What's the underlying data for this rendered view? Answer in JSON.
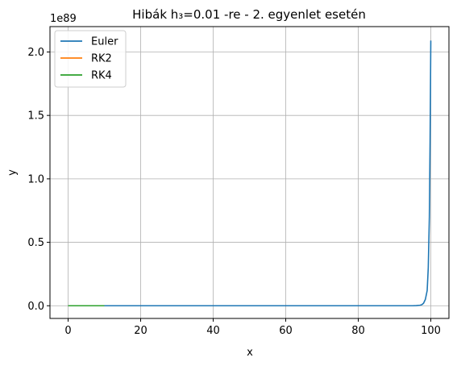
{
  "chart_data": {
    "type": "line",
    "title": "Hibák h₃=0.01 -re - 2. egyenlet esetén",
    "xlabel": "x",
    "ylabel": "y",
    "y_offset_text": "1e89",
    "xlim": [
      -5,
      105
    ],
    "ylim": [
      -0.1,
      2.2
    ],
    "y_scale_factor": 1e+89,
    "x_ticks": [
      0,
      20,
      40,
      60,
      80,
      100
    ],
    "x_tick_labels": [
      "0",
      "20",
      "40",
      "60",
      "80",
      "100"
    ],
    "y_ticks": [
      0.0,
      0.5,
      1.0,
      1.5,
      2.0
    ],
    "y_tick_labels": [
      "0.0",
      "0.5",
      "1.0",
      "1.5",
      "2.0"
    ],
    "grid": true,
    "legend_position": "top-left",
    "series": [
      {
        "name": "Euler",
        "color": "#1f77b4",
        "x": [
          0,
          10,
          20,
          30,
          40,
          50,
          60,
          70,
          80,
          90,
          95,
          96,
          97,
          97.5,
          98,
          98.5,
          99,
          99.3,
          99.6,
          99.8,
          100
        ],
        "y": [
          0,
          0,
          0,
          0,
          0,
          0,
          0,
          0,
          0,
          0,
          0.0,
          0.001,
          0.004,
          0.008,
          0.02,
          0.05,
          0.12,
          0.3,
          0.7,
          1.3,
          2.09
        ]
      },
      {
        "name": "RK2",
        "color": "#ff7f0e",
        "x": [
          0,
          2,
          4,
          6,
          8,
          10
        ],
        "y": [
          0,
          0,
          0,
          0,
          0,
          0
        ]
      },
      {
        "name": "RK4",
        "color": "#2ca02c",
        "x": [
          0,
          2,
          4,
          6,
          8,
          10
        ],
        "y": [
          0,
          0,
          0,
          0,
          0,
          0
        ]
      }
    ]
  }
}
